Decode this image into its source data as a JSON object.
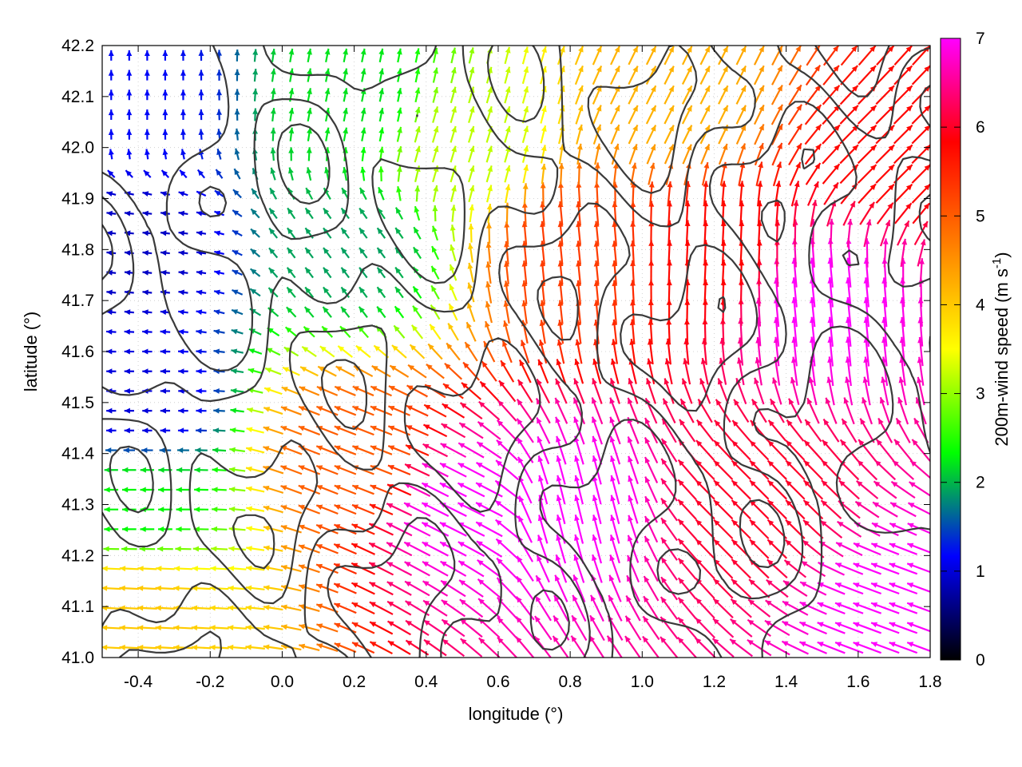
{
  "chart_data": {
    "type": "vector_field",
    "xlabel": "longitude (°)",
    "ylabel": "latitude (°)",
    "colorbar_label_main": "200m-wind speed (m s",
    "colorbar_label_sup": "-1",
    "colorbar_label_close": ")",
    "xlim": [
      -0.5,
      1.8
    ],
    "ylim": [
      41.0,
      42.2
    ],
    "xticks": [
      -0.4,
      -0.2,
      0.0,
      0.2,
      0.4,
      0.6,
      0.8,
      1.0,
      1.2,
      1.4,
      1.6,
      1.8
    ],
    "xtick_labels": [
      "-0.4",
      "-0.2",
      "0.0",
      "0.2",
      "0.4",
      "0.6",
      "0.8",
      "1.0",
      "1.2",
      "1.4",
      "1.6",
      "1.8"
    ],
    "yticks": [
      41.0,
      41.1,
      41.2,
      41.3,
      41.4,
      41.5,
      41.6,
      41.7,
      41.8,
      41.9,
      42.0,
      42.1,
      42.2
    ],
    "ytick_labels": [
      "41.0",
      "41.1",
      "41.2",
      "41.3",
      "41.4",
      "41.5",
      "41.6",
      "41.7",
      "41.8",
      "41.9",
      "42.0",
      "42.1",
      "42.2"
    ],
    "colorbar_range": [
      0,
      7
    ],
    "colorbar_ticks": [
      0,
      1,
      2,
      3,
      4,
      5,
      6,
      7
    ],
    "colorbar_tick_labels": [
      "0",
      "1",
      "2",
      "3",
      "4",
      "5",
      "6",
      "7"
    ],
    "colorbar_colors": [
      "#000000",
      "#0000ff",
      "#00ff00",
      "#ffff00",
      "#ff8000",
      "#ff0000",
      "#ff00ff"
    ],
    "contour_color": "#3a3a3a",
    "grid": true,
    "wind_samples": [
      {
        "lon": -0.4,
        "lat": 42.1,
        "speed": 1.2,
        "u": 0.0,
        "v": 1.0
      },
      {
        "lon": -0.4,
        "lat": 41.8,
        "speed": 0.9,
        "u": -1.0,
        "v": 0.1
      },
      {
        "lon": -0.4,
        "lat": 41.5,
        "speed": 1.0,
        "u": -1.0,
        "v": 0.0
      },
      {
        "lon": -0.4,
        "lat": 41.3,
        "speed": 2.3,
        "u": -1.0,
        "v": 0.0
      },
      {
        "lon": -0.4,
        "lat": 41.1,
        "speed": 4.0,
        "u": -1.0,
        "v": 0.05
      },
      {
        "lon": 0.2,
        "lat": 42.1,
        "speed": 2.2,
        "u": 0.2,
        "v": 1.0
      },
      {
        "lon": 0.2,
        "lat": 41.8,
        "speed": 1.9,
        "u": -0.6,
        "v": 0.8
      },
      {
        "lon": 0.2,
        "lat": 41.4,
        "speed": 5.0,
        "u": -0.9,
        "v": 0.35
      },
      {
        "lon": 0.5,
        "lat": 42.0,
        "speed": 3.2,
        "u": 0.3,
        "v": 1.0
      },
      {
        "lon": 0.5,
        "lat": 41.3,
        "speed": 7.0,
        "u": -0.9,
        "v": 0.45
      },
      {
        "lon": 0.8,
        "lat": 41.8,
        "speed": 5.3,
        "u": -0.1,
        "v": 1.0
      },
      {
        "lon": 0.8,
        "lat": 41.3,
        "speed": 7.0,
        "u": -0.25,
        "v": 1.0
      },
      {
        "lon": 1.1,
        "lat": 42.1,
        "speed": 4.2,
        "u": 0.45,
        "v": 0.9
      },
      {
        "lon": 1.2,
        "lat": 41.8,
        "speed": 5.8,
        "u": 0.05,
        "v": 1.0
      },
      {
        "lon": 1.3,
        "lat": 41.3,
        "speed": 6.0,
        "u": -0.7,
        "v": 0.7
      },
      {
        "lon": 1.5,
        "lat": 41.7,
        "speed": 7.0,
        "u": -0.1,
        "v": 1.0
      },
      {
        "lon": 1.7,
        "lat": 41.1,
        "speed": 7.0,
        "u": -0.95,
        "v": 0.35
      },
      {
        "lon": 1.7,
        "lat": 42.0,
        "speed": 5.8,
        "u": 0.7,
        "v": 0.7
      }
    ]
  }
}
